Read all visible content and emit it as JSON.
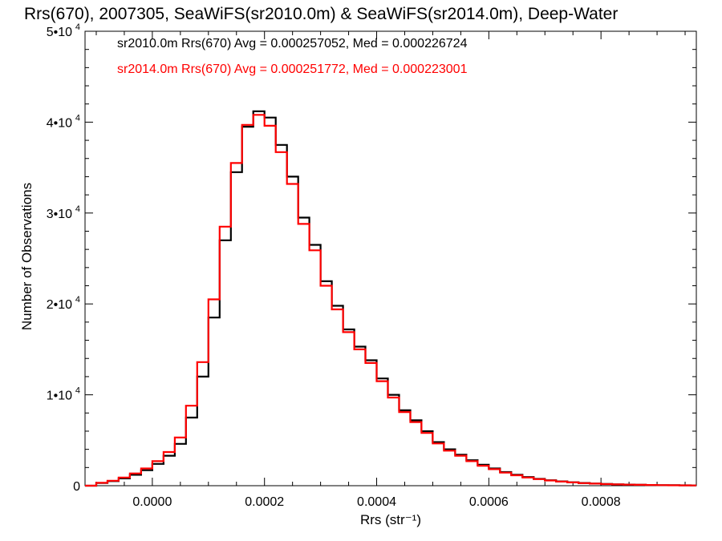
{
  "chart_data": {
    "type": "histogram",
    "title": "Rrs(670), 2007305, SeaWiFS(sr2010.0m) & SeaWiFS(sr2014.0m), Deep-Water",
    "xlabel": "Rrs (str⁻¹)",
    "ylabel": "Number of Observations",
    "xlim": [
      -0.00012,
      0.00097
    ],
    "ylim": [
      0,
      50000
    ],
    "x_ticks": [
      {
        "value": 0.0,
        "label": "0.0000"
      },
      {
        "value": 0.0002,
        "label": "0.0002"
      },
      {
        "value": 0.0004,
        "label": "0.0004"
      },
      {
        "value": 0.0006,
        "label": "0.0006"
      },
      {
        "value": 0.0008,
        "label": "0.0008"
      }
    ],
    "y_ticks": [
      {
        "value": 0,
        "label": "0"
      },
      {
        "value": 10000,
        "label": "1•10",
        "exp": "4"
      },
      {
        "value": 20000,
        "label": "2•10",
        "exp": "4"
      },
      {
        "value": 30000,
        "label": "3•10",
        "exp": "4"
      },
      {
        "value": 40000,
        "label": "4•10",
        "exp": "4"
      },
      {
        "value": 50000,
        "label": "5•10",
        "exp": "4"
      }
    ],
    "legend": [
      {
        "text": "sr2010.0m Rrs(670) Avg = 0.000257052, Med = 0.000226724",
        "color": "#000000"
      },
      {
        "text": "sr2014.0m Rrs(670) Avg = 0.000251772, Med = 0.000223001",
        "color": "#ff0000"
      }
    ],
    "series": [
      {
        "name": "sr2010.0m",
        "color": "#000000",
        "x": [
          -0.00012,
          -0.0001,
          -8e-05,
          -6e-05,
          -4e-05,
          -2e-05,
          0.0,
          2e-05,
          4e-05,
          6e-05,
          8e-05,
          0.0001,
          0.00012,
          0.00014,
          0.00016,
          0.00018,
          0.0002,
          0.00022,
          0.00024,
          0.00026,
          0.00028,
          0.0003,
          0.00032,
          0.00034,
          0.00036,
          0.00038,
          0.0004,
          0.00042,
          0.00044,
          0.00046,
          0.00048,
          0.0005,
          0.00052,
          0.00054,
          0.00056,
          0.00058,
          0.0006,
          0.00062,
          0.00064,
          0.00066,
          0.00068,
          0.0007,
          0.00072,
          0.00074,
          0.00076,
          0.00078,
          0.0008,
          0.00082,
          0.00084,
          0.00086,
          0.00088,
          0.0009,
          0.00092,
          0.00094,
          0.00096
        ],
        "y": [
          0,
          300,
          500,
          800,
          1200,
          1700,
          2400,
          3300,
          4600,
          7500,
          12000,
          18500,
          27000,
          34500,
          39500,
          41200,
          40500,
          37500,
          34000,
          29500,
          26500,
          22500,
          19800,
          17200,
          15300,
          13800,
          11800,
          10000,
          8300,
          7200,
          6000,
          4800,
          4000,
          3400,
          2800,
          2300,
          1900,
          1500,
          1200,
          950,
          750,
          600,
          480,
          380,
          300,
          240,
          190,
          150,
          120,
          100,
          80,
          60,
          50,
          40,
          30
        ]
      },
      {
        "name": "sr2014.0m",
        "color": "#ff0000",
        "x": [
          -0.00012,
          -0.0001,
          -8e-05,
          -6e-05,
          -4e-05,
          -2e-05,
          0.0,
          2e-05,
          4e-05,
          6e-05,
          8e-05,
          0.0001,
          0.00012,
          0.00014,
          0.00016,
          0.00018,
          0.0002,
          0.00022,
          0.00024,
          0.00026,
          0.00028,
          0.0003,
          0.00032,
          0.00034,
          0.00036,
          0.00038,
          0.0004,
          0.00042,
          0.00044,
          0.00046,
          0.00048,
          0.0005,
          0.00052,
          0.00054,
          0.00056,
          0.00058,
          0.0006,
          0.00062,
          0.00064,
          0.00066,
          0.00068,
          0.0007,
          0.00072,
          0.00074,
          0.00076,
          0.00078,
          0.0008,
          0.00082,
          0.00084,
          0.00086,
          0.00088,
          0.0009,
          0.00092,
          0.00094,
          0.00096
        ],
        "y": [
          0,
          320,
          550,
          900,
          1350,
          1900,
          2700,
          3700,
          5300,
          8800,
          13600,
          20500,
          28500,
          35500,
          39700,
          40800,
          39600,
          36700,
          33200,
          28800,
          25900,
          22000,
          19400,
          16900,
          15000,
          13500,
          11500,
          9700,
          8100,
          7000,
          5800,
          4650,
          3850,
          3300,
          2700,
          2200,
          1820,
          1440,
          1150,
          900,
          720,
          570,
          460,
          360,
          285,
          230,
          180,
          145,
          115,
          95,
          75,
          58,
          48,
          38,
          28
        ]
      }
    ]
  }
}
